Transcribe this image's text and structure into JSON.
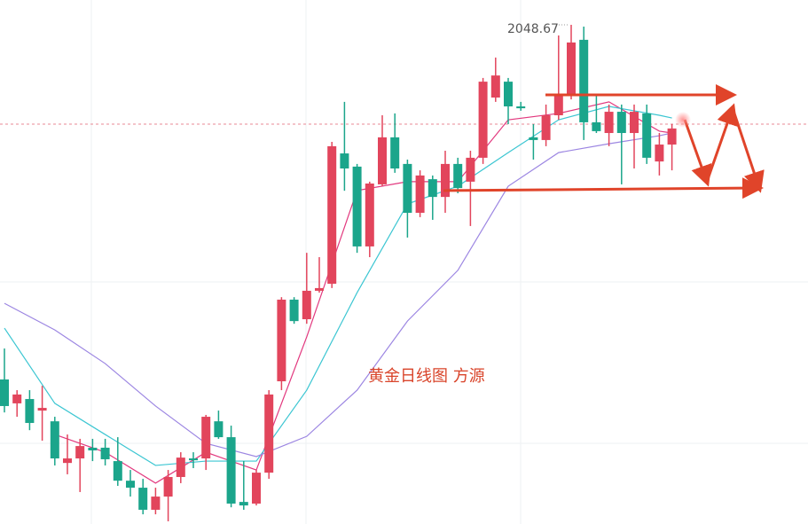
{
  "chart_data": {
    "type": "candlestick",
    "annotation": "黄金日线图 方源",
    "ylim": [
      1806.6,
      2060.7
    ],
    "up_color": "#e2455c",
    "down_color": "#1ba58b",
    "price_line": 2000.5,
    "candles": [
      [
        1876.7,
        1891.7,
        1860.7,
        1863.8
      ],
      [
        1865.1,
        1871.5,
        1858.6,
        1869.4
      ],
      [
        1867.2,
        1871.5,
        1852.1,
        1855.6
      ],
      [
        1861.6,
        1873.6,
        1847.0,
        1862.9
      ],
      [
        1856.4,
        1858.6,
        1835.0,
        1838.4
      ],
      [
        1836.2,
        1850.0,
        1830.7,
        1838.4
      ],
      [
        1838.4,
        1847.9,
        1822.1,
        1844.4
      ],
      [
        1843.6,
        1847.9,
        1837.1,
        1842.3
      ],
      [
        1843.6,
        1847.9,
        1835.0,
        1838.0
      ],
      [
        1837.1,
        1848.7,
        1825.1,
        1827.6
      ],
      [
        1827.6,
        1832.8,
        1819.9,
        1824.2
      ],
      [
        1824.2,
        1828.5,
        1811.3,
        1813.5
      ],
      [
        1813.5,
        1824.2,
        1811.3,
        1819.9
      ],
      [
        1819.9,
        1832.8,
        1807.9,
        1829.4
      ],
      [
        1829.4,
        1841.4,
        1826.4,
        1838.8
      ],
      [
        1838.4,
        1841.4,
        1833.7,
        1837.5
      ],
      [
        1838.4,
        1859.5,
        1832.8,
        1858.6
      ],
      [
        1856.4,
        1861.6,
        1847.9,
        1848.7
      ],
      [
        1848.7,
        1854.3,
        1814.7,
        1816.5
      ],
      [
        1817.3,
        1837.1,
        1813.5,
        1815.6
      ],
      [
        1816.5,
        1832.8,
        1815.6,
        1831.5
      ],
      [
        1831.5,
        1871.5,
        1828.5,
        1869.4
      ],
      [
        1875.8,
        1916.6,
        1871.5,
        1915.4
      ],
      [
        1915.4,
        1916.6,
        1903.7,
        1905.0
      ],
      [
        1905.9,
        1938.1,
        1903.7,
        1919.7
      ],
      [
        1919.7,
        1936.0,
        1918.8,
        1921.0
      ],
      [
        1923.1,
        1991.9,
        1921.0,
        1989.8
      ],
      [
        1986.3,
        2011.3,
        1968.2,
        1979.0
      ],
      [
        1979.9,
        1981.2,
        1938.1,
        1941.2
      ],
      [
        1941.2,
        1972.6,
        1936.0,
        1971.7
      ],
      [
        1971.3,
        2004.8,
        1970.4,
        1994.1
      ],
      [
        1994.1,
        2005.7,
        1976.9,
        1979.0
      ],
      [
        1981.2,
        1983.3,
        1945.5,
        1957.5
      ],
      [
        1957.5,
        1978.1,
        1955.4,
        1975.6
      ],
      [
        1973.8,
        1975.6,
        1954.1,
        1965.2
      ],
      [
        1965.2,
        1987.6,
        1957.5,
        1981.2
      ],
      [
        1981.2,
        1984.2,
        1967.0,
        1969.5
      ],
      [
        1972.6,
        1987.6,
        1951.1,
        1984.2
      ],
      [
        1984.2,
        2022.9,
        1981.2,
        2021.1
      ],
      [
        2013.4,
        2032.8,
        2011.3,
        2024.1
      ],
      [
        2021.1,
        2022.9,
        2000.5,
        2009.1
      ],
      [
        2009.1,
        2011.3,
        2007.0,
        2008.2
      ],
      [
        1994.1,
        2000.5,
        1983.3,
        1992.8
      ],
      [
        1992.8,
        2010.0,
        1989.8,
        2004.8
      ],
      [
        2004.8,
        2043.5,
        2002.6,
        2014.3
      ],
      [
        2014.3,
        2048.67,
        2012.5,
        2040.1
      ],
      [
        2041.4,
        2047.8,
        1992.8,
        2001.4
      ],
      [
        2001.4,
        2014.3,
        1996.2,
        1997.1
      ],
      [
        1996.2,
        2010.0,
        1989.8,
        2006.5
      ],
      [
        2006.5,
        2010.0,
        1971.3,
        1996.2
      ],
      [
        1996.2,
        2010.0,
        1979.0,
        2006.5
      ],
      [
        2005.7,
        2010.0,
        1981.2,
        1984.2
      ],
      [
        1982.4,
        1996.2,
        1975.6,
        1990.6
      ],
      [
        1990.6,
        2000.5,
        1978.1,
        1998.4
      ]
    ],
    "x": [
      0,
      4,
      8,
      12,
      16,
      20,
      24,
      28,
      32,
      36,
      40,
      44,
      48,
      52,
      53
    ],
    "lines": [
      {
        "color": "#e2387e",
        "values": [
          null,
          1850.0,
          1841.4,
          1826.4,
          1841.4,
          1832.8,
          1897.3,
          1968.3,
          1972.6,
          1972.6,
          2002.6,
          2005.7,
          2011.3,
          1997.1,
          1996.2
        ]
      },
      {
        "color": "#3cc6d2",
        "values": [
          1901.6,
          1865.1,
          1850.0,
          1835.0,
          1837.1,
          1837.1,
          1871.5,
          1918.8,
          1961.8,
          1970.4,
          1986.7,
          2002.6,
          2009.1,
          2004.8,
          2003.5
        ]
      },
      {
        "color": "#9c86e2",
        "values": [
          1913.6,
          1900.7,
          1884.4,
          1863.8,
          1845.7,
          1839.3,
          1849.1,
          1871.5,
          1905.0,
          1929.6,
          1970.4,
          1986.7,
          1991.0,
          1994.9,
          1996.2
        ]
      }
    ]
  }
}
